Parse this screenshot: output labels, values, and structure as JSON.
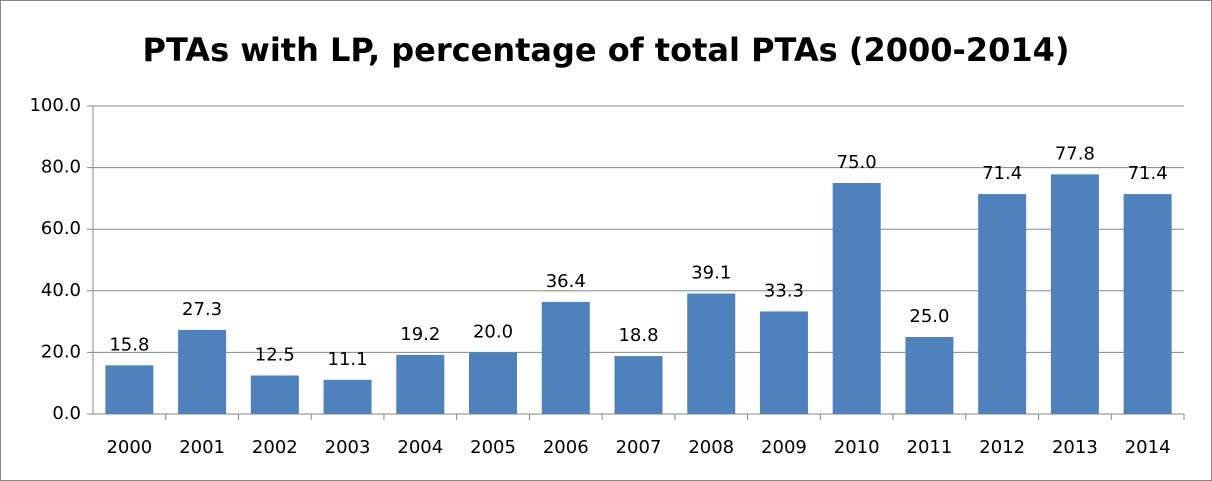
{
  "chart_data": {
    "type": "bar",
    "title": "PTAs with LP, percentage of total PTAs (2000-2014)",
    "categories": [
      "2000",
      "2001",
      "2002",
      "2003",
      "2004",
      "2005",
      "2006",
      "2007",
      "2008",
      "2009",
      "2010",
      "2011",
      "2012",
      "2013",
      "2014"
    ],
    "values": [
      15.8,
      27.3,
      12.5,
      11.1,
      19.2,
      20.0,
      36.4,
      18.8,
      39.1,
      33.3,
      75.0,
      25.0,
      71.4,
      77.8,
      71.4
    ],
    "value_labels": [
      "15.8",
      "27.3",
      "12.5",
      "11.1",
      "19.2",
      "20.0",
      "36.4",
      "18.8",
      "39.1",
      "33.3",
      "75.0",
      "25.0",
      "71.4",
      "77.8",
      "71.4"
    ],
    "color": "#4f81bd",
    "ylim": [
      0,
      100
    ],
    "yticks": [
      {
        "value": 0,
        "label": "0.0"
      },
      {
        "value": 20,
        "label": "20.0"
      },
      {
        "value": 40,
        "label": "40.0"
      },
      {
        "value": 60,
        "label": "60.0"
      },
      {
        "value": 80,
        "label": "80.0"
      },
      {
        "value": 100,
        "label": "100.0"
      }
    ],
    "grid": true
  }
}
